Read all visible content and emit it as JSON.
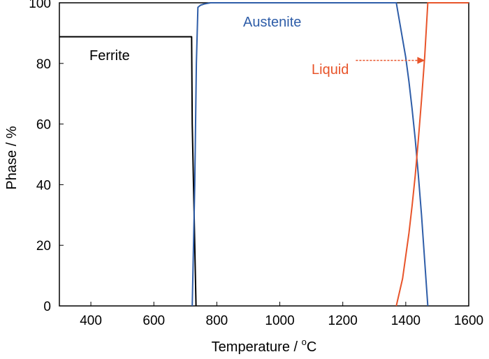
{
  "chart_data": {
    "type": "line",
    "title": "",
    "xlabel": "Temperature / ",
    "xlabel_unit_sup": "o",
    "xlabel_unit": "C",
    "ylabel": "Phase / %",
    "xlim": [
      300,
      1600
    ],
    "ylim": [
      0,
      100
    ],
    "xticks": [
      400,
      600,
      800,
      1000,
      1200,
      1400,
      1600
    ],
    "yticks": [
      0,
      20,
      40,
      60,
      80,
      100
    ],
    "grid": false,
    "legend": "none",
    "series": [
      {
        "name": "Ferrite",
        "color": "#000000",
        "x": [
          300,
          720,
          722,
          734
        ],
        "y": [
          88.8,
          88.8,
          60,
          0
        ]
      },
      {
        "name": "Austenite",
        "color": "#2e5da8",
        "x": [
          722,
          730,
          735,
          740,
          748,
          760,
          780,
          1370,
          1390,
          1400,
          1410,
          1420,
          1430,
          1440,
          1450,
          1460,
          1470
        ],
        "y": [
          0,
          40,
          80,
          98.5,
          99.2,
          99.6,
          100,
          100,
          88,
          82,
          74,
          65,
          55,
          43,
          30,
          15,
          0
        ]
      },
      {
        "name": "Liquid",
        "color": "#e8542a",
        "x": [
          1370,
          1390,
          1410,
          1420,
          1430,
          1440,
          1450,
          1460,
          1470,
          1600
        ],
        "y": [
          0,
          9,
          24,
          33,
          43,
          55,
          68,
          82,
          100,
          100
        ]
      }
    ],
    "annotations": [
      {
        "text": "Ferrite",
        "color": "#000000"
      },
      {
        "text": "Austenite",
        "color": "#2e5da8"
      },
      {
        "text": "Liquid",
        "color": "#e8542a",
        "arrow_to": [
          1470,
          81
        ]
      }
    ]
  }
}
